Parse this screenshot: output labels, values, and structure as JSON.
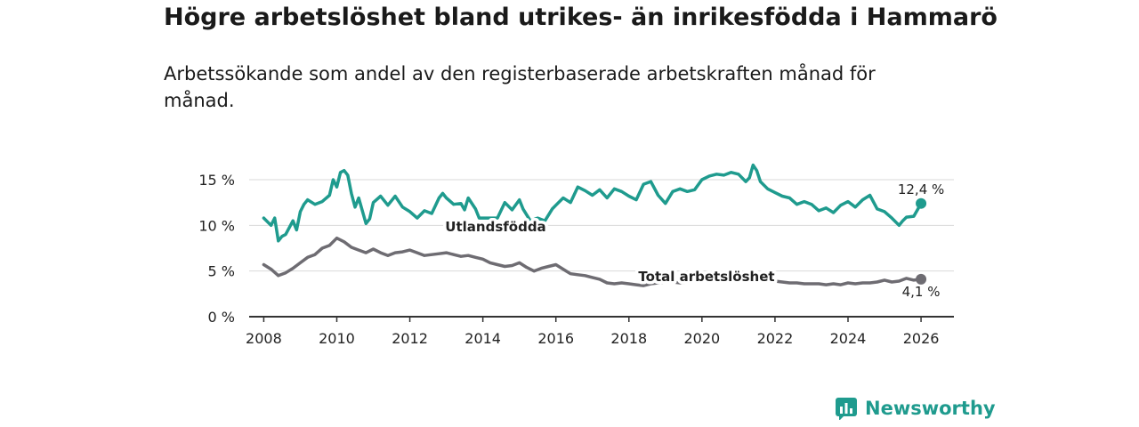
{
  "title": "Högre arbetslöshet bland utrikes- än inrikesfödda i Hammarö",
  "subtitle": "Arbetssökande som andel av den registerbaserade arbetskraften månad för månad.",
  "brand": "Newsworthy",
  "colors": {
    "foreign": "#1f9b8e",
    "total": "#6e6c72",
    "axis": "#333333",
    "grid": "#d9d9d9"
  },
  "chart_data": {
    "type": "line",
    "title": "Högre arbetslöshet bland utrikes- än inrikesfödda i Hammarö",
    "xlabel": "",
    "ylabel": "",
    "xlim": [
      2007.6,
      2026.9
    ],
    "ylim": [
      0,
      15
    ],
    "x_ticks": [
      {
        "value": 2008,
        "label": "2008"
      },
      {
        "value": 2010,
        "label": "2010"
      },
      {
        "value": 2012,
        "label": "2012"
      },
      {
        "value": 2014,
        "label": "2014"
      },
      {
        "value": 2016,
        "label": "2016"
      },
      {
        "value": 2018,
        "label": "2018"
      },
      {
        "value": 2020,
        "label": "2020"
      },
      {
        "value": 2022,
        "label": "2022"
      },
      {
        "value": 2024,
        "label": "2024"
      },
      {
        "value": 2026,
        "label": "2026"
      }
    ],
    "y_ticks": [
      {
        "value": 0,
        "label": "0 %"
      },
      {
        "value": 5,
        "label": "5 %"
      },
      {
        "value": 10,
        "label": "10 %"
      },
      {
        "value": 15,
        "label": "15 %"
      }
    ],
    "series": [
      {
        "name": "Utlandsfödda",
        "last_label": "12,4 %",
        "x": [
          2008.0,
          2008.2,
          2008.3,
          2008.4,
          2008.5,
          2008.6,
          2008.8,
          2008.9,
          2009.0,
          2009.1,
          2009.2,
          2009.4,
          2009.6,
          2009.8,
          2009.9,
          2010.0,
          2010.1,
          2010.2,
          2010.3,
          2010.4,
          2010.5,
          2010.6,
          2010.8,
          2010.9,
          2011.0,
          2011.2,
          2011.4,
          2011.6,
          2011.8,
          2012.0,
          2012.2,
          2012.4,
          2012.6,
          2012.8,
          2012.9,
          2013.0,
          2013.2,
          2013.4,
          2013.5,
          2013.6,
          2013.8,
          2013.9,
          2014.0,
          2014.2,
          2014.4,
          2014.6,
          2014.8,
          2015.0,
          2015.1,
          2015.3,
          2015.5,
          2015.7,
          2015.9,
          2016.0,
          2016.2,
          2016.4,
          2016.6,
          2016.8,
          2017.0,
          2017.2,
          2017.4,
          2017.6,
          2017.8,
          2018.0,
          2018.2,
          2018.4,
          2018.6,
          2018.8,
          2019.0,
          2019.2,
          2019.4,
          2019.6,
          2019.8,
          2020.0,
          2020.2,
          2020.4,
          2020.6,
          2020.8,
          2021.0,
          2021.2,
          2021.3,
          2021.4,
          2021.5,
          2021.6,
          2021.8,
          2022.0,
          2022.2,
          2022.4,
          2022.6,
          2022.8,
          2023.0,
          2023.2,
          2023.4,
          2023.6,
          2023.8,
          2024.0,
          2024.2,
          2024.4,
          2024.6,
          2024.8,
          2025.0,
          2025.2,
          2025.4,
          2025.5,
          2025.6,
          2025.8,
          2026.0
        ],
        "values": [
          10.8,
          10.0,
          10.8,
          8.3,
          8.8,
          9.0,
          10.5,
          9.5,
          11.5,
          12.3,
          12.8,
          12.3,
          12.6,
          13.3,
          15.0,
          14.2,
          15.8,
          16.0,
          15.5,
          13.5,
          12.0,
          13.0,
          10.2,
          10.7,
          12.5,
          13.2,
          12.2,
          13.2,
          12.0,
          11.5,
          10.8,
          11.6,
          11.3,
          13.0,
          13.5,
          13.0,
          12.3,
          12.4,
          11.7,
          13.0,
          11.8,
          10.8,
          10.8,
          10.8,
          10.8,
          12.5,
          11.7,
          12.8,
          11.8,
          10.5,
          10.8,
          10.5,
          11.8,
          12.2,
          13.0,
          12.5,
          14.2,
          13.8,
          13.3,
          13.9,
          13.0,
          14.0,
          13.7,
          13.2,
          12.8,
          14.5,
          14.8,
          13.3,
          12.4,
          13.7,
          14.0,
          13.7,
          13.9,
          15.0,
          15.4,
          15.6,
          15.5,
          15.8,
          15.6,
          14.8,
          15.2,
          16.6,
          16.0,
          14.8,
          14.0,
          13.6,
          13.2,
          13.0,
          12.3,
          12.6,
          12.3,
          11.6,
          11.9,
          11.4,
          12.2,
          12.6,
          12.0,
          12.8,
          13.3,
          11.8,
          11.5,
          10.8,
          10.0,
          10.5,
          10.9,
          11.0,
          12.4
        ]
      },
      {
        "name": "Total arbetslöshet",
        "last_label": "4,1 %",
        "x": [
          2008.0,
          2008.2,
          2008.4,
          2008.6,
          2008.8,
          2009.0,
          2009.2,
          2009.4,
          2009.6,
          2009.8,
          2010.0,
          2010.2,
          2010.4,
          2010.6,
          2010.8,
          2011.0,
          2011.2,
          2011.4,
          2011.6,
          2011.8,
          2012.0,
          2012.2,
          2012.4,
          2012.6,
          2012.8,
          2013.0,
          2013.2,
          2013.4,
          2013.6,
          2013.8,
          2014.0,
          2014.2,
          2014.4,
          2014.6,
          2014.8,
          2015.0,
          2015.2,
          2015.4,
          2015.6,
          2015.8,
          2016.0,
          2016.2,
          2016.4,
          2016.6,
          2016.8,
          2017.0,
          2017.2,
          2017.4,
          2017.6,
          2017.8,
          2018.0,
          2018.2,
          2018.4,
          2018.6,
          2018.8,
          2019.0,
          2019.2,
          2019.4,
          2019.6,
          2019.8,
          2020.0,
          2020.2,
          2020.4,
          2020.6,
          2020.8,
          2021.0,
          2021.2,
          2021.4,
          2021.6,
          2021.8,
          2022.0,
          2022.2,
          2022.4,
          2022.6,
          2022.8,
          2023.0,
          2023.2,
          2023.4,
          2023.6,
          2023.8,
          2024.0,
          2024.2,
          2024.4,
          2024.6,
          2024.8,
          2025.0,
          2025.2,
          2025.4,
          2025.6,
          2025.8,
          2026.0
        ],
        "values": [
          5.7,
          5.2,
          4.5,
          4.8,
          5.3,
          5.9,
          6.5,
          6.8,
          7.5,
          7.8,
          8.6,
          8.2,
          7.6,
          7.3,
          7.0,
          7.4,
          7.0,
          6.7,
          7.0,
          7.1,
          7.3,
          7.0,
          6.7,
          6.8,
          6.9,
          7.0,
          6.8,
          6.6,
          6.7,
          6.5,
          6.3,
          5.9,
          5.7,
          5.5,
          5.6,
          5.9,
          5.4,
          5.0,
          5.3,
          5.5,
          5.7,
          5.2,
          4.7,
          4.6,
          4.5,
          4.3,
          4.1,
          3.7,
          3.6,
          3.7,
          3.6,
          3.5,
          3.4,
          3.6,
          3.7,
          3.8,
          3.8,
          3.7,
          3.8,
          3.9,
          3.9,
          4.0,
          4.0,
          4.1,
          4.0,
          4.1,
          4.0,
          4.0,
          3.9,
          3.9,
          3.9,
          3.8,
          3.7,
          3.7,
          3.6,
          3.6,
          3.6,
          3.5,
          3.6,
          3.5,
          3.7,
          3.6,
          3.7,
          3.7,
          3.8,
          4.0,
          3.8,
          3.9,
          4.2,
          4.0,
          4.1
        ]
      }
    ]
  }
}
